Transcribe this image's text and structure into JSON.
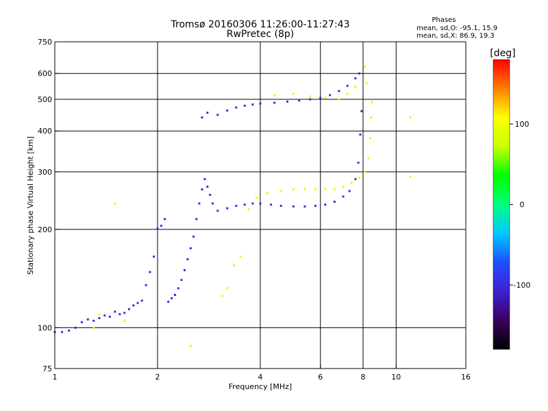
{
  "chart_data": {
    "type": "scatter",
    "title": "Tromsø 20160306 11:26:00-11:27:43",
    "subtitle": "RwPretec (8p)",
    "xlabel": "Frequency [MHz]",
    "ylabel": "Stationary phase Virtual Height [km]",
    "x_scale": "log",
    "y_scale": "log",
    "xlim": [
      1,
      16
    ],
    "ylim": [
      75,
      750
    ],
    "x_ticks": [
      1,
      2,
      4,
      6,
      8,
      10,
      16
    ],
    "y_ticks": [
      75,
      100,
      200,
      300,
      400,
      500,
      600,
      750
    ],
    "grid": true,
    "stats": {
      "heading": "Phases",
      "o_line": "mean, sd,O: -95.1, 15.9",
      "x_line": "mean, sd,X:  86.9, 19.3"
    },
    "colorbar": {
      "label": "[deg]",
      "range": [
        -180,
        180
      ],
      "ticks": [
        100,
        0,
        -100
      ],
      "colors": [
        "#000000",
        "#3a0060",
        "#3f1fd0",
        "#1e50ff",
        "#00c8ff",
        "#00ff80",
        "#00ff00",
        "#c8ff00",
        "#ffff00",
        "#ff8000",
        "#ff0000"
      ]
    },
    "series": [
      {
        "mode": "O",
        "phase_mean": -95.1,
        "points": [
          [
            1.0,
            97
          ],
          [
            1.05,
            97
          ],
          [
            1.1,
            98
          ],
          [
            1.15,
            100
          ],
          [
            1.2,
            104
          ],
          [
            1.25,
            106
          ],
          [
            1.3,
            105
          ],
          [
            1.35,
            107
          ],
          [
            1.4,
            109
          ],
          [
            1.45,
            108
          ],
          [
            1.5,
            112
          ],
          [
            1.55,
            110
          ],
          [
            1.6,
            111
          ],
          [
            1.65,
            114
          ],
          [
            1.7,
            117
          ],
          [
            1.75,
            119
          ],
          [
            1.8,
            121
          ],
          [
            1.85,
            135
          ],
          [
            1.9,
            148
          ],
          [
            1.95,
            165
          ],
          [
            2.0,
            201
          ],
          [
            2.05,
            205
          ],
          [
            2.1,
            215
          ],
          [
            2.15,
            120
          ],
          [
            2.2,
            123
          ],
          [
            2.25,
            126
          ],
          [
            2.3,
            132
          ],
          [
            2.35,
            140
          ],
          [
            2.4,
            150
          ],
          [
            2.45,
            162
          ],
          [
            2.5,
            175
          ],
          [
            2.55,
            190
          ],
          [
            2.6,
            215
          ],
          [
            2.65,
            240
          ],
          [
            2.7,
            265
          ],
          [
            2.75,
            285
          ],
          [
            2.8,
            270
          ],
          [
            2.85,
            255
          ],
          [
            2.9,
            240
          ],
          [
            3.0,
            228
          ],
          [
            3.2,
            232
          ],
          [
            3.4,
            236
          ],
          [
            3.6,
            238
          ],
          [
            3.8,
            240
          ],
          [
            4.0,
            240
          ],
          [
            4.3,
            238
          ],
          [
            4.6,
            236
          ],
          [
            5.0,
            235
          ],
          [
            5.4,
            235
          ],
          [
            5.8,
            236
          ],
          [
            6.2,
            238
          ],
          [
            6.6,
            243
          ],
          [
            7.0,
            252
          ],
          [
            7.3,
            262
          ],
          [
            7.6,
            285
          ],
          [
            7.75,
            320
          ],
          [
            7.85,
            390
          ],
          [
            7.92,
            460
          ],
          [
            2.7,
            440
          ],
          [
            2.8,
            455
          ],
          [
            3.0,
            448
          ],
          [
            3.2,
            462
          ],
          [
            3.4,
            472
          ],
          [
            3.6,
            478
          ],
          [
            3.8,
            482
          ],
          [
            4.0,
            485
          ],
          [
            4.4,
            488
          ],
          [
            4.8,
            492
          ],
          [
            5.2,
            496
          ],
          [
            5.6,
            500
          ],
          [
            6.0,
            505
          ],
          [
            6.4,
            515
          ],
          [
            6.8,
            530
          ],
          [
            7.2,
            550
          ],
          [
            7.6,
            580
          ],
          [
            7.8,
            600
          ]
        ]
      },
      {
        "mode": "X",
        "phase_mean": 86.9,
        "points": [
          [
            1.3,
            100
          ],
          [
            1.35,
            110
          ],
          [
            1.5,
            240
          ],
          [
            1.6,
            105
          ],
          [
            2.5,
            88
          ],
          [
            3.1,
            125
          ],
          [
            3.2,
            132
          ],
          [
            3.35,
            155
          ],
          [
            3.5,
            165
          ],
          [
            3.7,
            230
          ],
          [
            3.9,
            250
          ],
          [
            4.2,
            258
          ],
          [
            4.6,
            262
          ],
          [
            5.0,
            265
          ],
          [
            5.4,
            266
          ],
          [
            5.8,
            266
          ],
          [
            6.2,
            266
          ],
          [
            6.6,
            265
          ],
          [
            7.0,
            270
          ],
          [
            7.4,
            278
          ],
          [
            7.8,
            288
          ],
          [
            8.1,
            300
          ],
          [
            8.3,
            330
          ],
          [
            8.4,
            380
          ],
          [
            8.45,
            440
          ],
          [
            8.5,
            490
          ],
          [
            8.2,
            560
          ],
          [
            8.1,
            630
          ],
          [
            4.4,
            515
          ],
          [
            5.0,
            520
          ],
          [
            5.6,
            510
          ],
          [
            6.2,
            505
          ],
          [
            6.8,
            500
          ],
          [
            7.2,
            520
          ],
          [
            7.6,
            545
          ],
          [
            11.0,
            440
          ],
          [
            11.0,
            290
          ]
        ]
      }
    ]
  }
}
